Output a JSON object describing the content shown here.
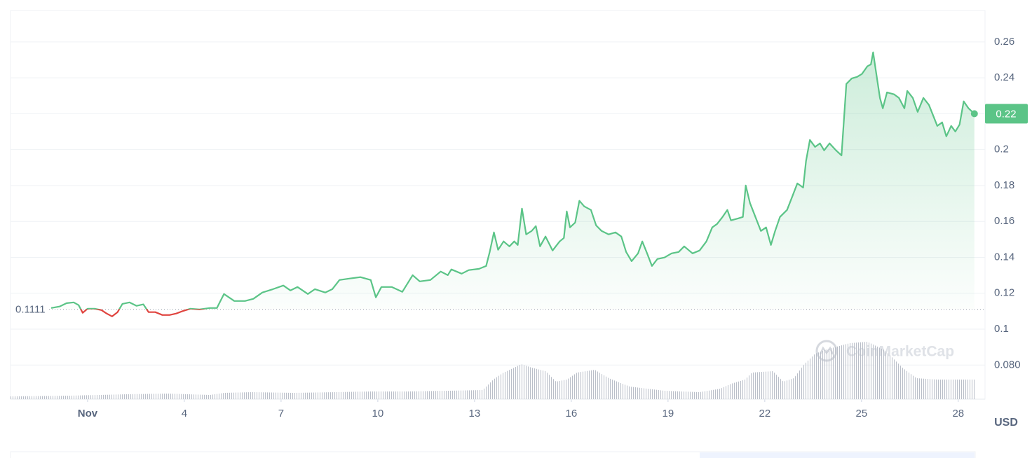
{
  "chart_data": {
    "type": "line",
    "x": [
      -0.13,
      0.13,
      0.35,
      0.57,
      0.72,
      0.85,
      1.0,
      1.22,
      1.43,
      1.59,
      1.76,
      1.93,
      2.08,
      2.3,
      2.52,
      2.73,
      2.89,
      3.1,
      3.32,
      3.54,
      3.75,
      3.97,
      4.19,
      4.47,
      4.79,
      5.01,
      5.23,
      5.55,
      5.88,
      6.14,
      6.42,
      6.75,
      7.07,
      7.29,
      7.51,
      7.83,
      8.05,
      8.37,
      8.59,
      8.81,
      9.13,
      9.46,
      9.78,
      9.94,
      10.11,
      10.43,
      10.76,
      11.08,
      11.3,
      11.63,
      11.95,
      12.17,
      12.28,
      12.6,
      12.82,
      13.14,
      13.36,
      13.47,
      13.6,
      13.73,
      13.9,
      14.08,
      14.23,
      14.34,
      14.47,
      14.6,
      14.77,
      14.9,
      15.03,
      15.2,
      15.42,
      15.64,
      15.77,
      15.86,
      15.96,
      16.12,
      16.25,
      16.4,
      16.61,
      16.77,
      16.94,
      17.16,
      17.37,
      17.55,
      17.7,
      17.87,
      18.07,
      18.2,
      18.35,
      18.5,
      18.67,
      18.89,
      19.11,
      19.33,
      19.5,
      19.76,
      19.98,
      20.19,
      20.37,
      20.52,
      20.69,
      20.84,
      20.95,
      21.17,
      21.32,
      21.41,
      21.54,
      21.71,
      21.88,
      22.04,
      22.19,
      22.32,
      22.47,
      22.69,
      22.86,
      23.01,
      23.19,
      23.28,
      23.4,
      23.56,
      23.71,
      23.84,
      24.01,
      24.21,
      24.38,
      24.53,
      24.7,
      24.86,
      25.01,
      25.18,
      25.29,
      25.36,
      25.44,
      25.57,
      25.66,
      25.79,
      26.01,
      26.16,
      26.33,
      26.42,
      26.59,
      26.74,
      26.92,
      27.09,
      27.22,
      27.35,
      27.5,
      27.63,
      27.78,
      27.91,
      28.04,
      28.17,
      28.32,
      28.5
    ],
    "values": [
      0.1118,
      0.1126,
      0.1145,
      0.1149,
      0.1134,
      0.1091,
      0.1114,
      0.1114,
      0.1106,
      0.1087,
      0.1071,
      0.1095,
      0.1141,
      0.1149,
      0.113,
      0.1138,
      0.1095,
      0.1095,
      0.1079,
      0.1079,
      0.1087,
      0.1102,
      0.1114,
      0.111,
      0.1118,
      0.1118,
      0.1196,
      0.1157,
      0.1157,
      0.1169,
      0.1204,
      0.1223,
      0.1243,
      0.1216,
      0.1235,
      0.1196,
      0.1223,
      0.1204,
      0.1223,
      0.1274,
      0.1282,
      0.129,
      0.1274,
      0.1177,
      0.1235,
      0.1235,
      0.1208,
      0.1301,
      0.1266,
      0.1274,
      0.1321,
      0.1301,
      0.1333,
      0.1309,
      0.1329,
      0.1336,
      0.1352,
      0.143,
      0.1539,
      0.1442,
      0.1489,
      0.1461,
      0.1489,
      0.1469,
      0.1672,
      0.1528,
      0.1547,
      0.1574,
      0.1461,
      0.1516,
      0.1438,
      0.1489,
      0.1508,
      0.1656,
      0.1567,
      0.1594,
      0.1715,
      0.1684,
      0.1664,
      0.1578,
      0.1547,
      0.1528,
      0.1539,
      0.1516,
      0.143,
      0.1379,
      0.1422,
      0.1489,
      0.1422,
      0.1352,
      0.1391,
      0.1399,
      0.1422,
      0.143,
      0.1461,
      0.1422,
      0.1438,
      0.1489,
      0.1567,
      0.1586,
      0.1625,
      0.1664,
      0.1606,
      0.1617,
      0.1625,
      0.18,
      0.1703,
      0.1625,
      0.1547,
      0.1567,
      0.1469,
      0.1547,
      0.1625,
      0.1664,
      0.1742,
      0.1812,
      0.1789,
      0.1937,
      0.2054,
      0.2015,
      0.2035,
      0.1996,
      0.2035,
      0.1996,
      0.1968,
      0.2366,
      0.2397,
      0.2405,
      0.2421,
      0.2464,
      0.2475,
      0.2542,
      0.2444,
      0.2288,
      0.223,
      0.2319,
      0.2308,
      0.2288,
      0.223,
      0.2327,
      0.2288,
      0.221,
      0.2288,
      0.2249,
      0.2191,
      0.2132,
      0.2152,
      0.2074,
      0.2132,
      0.2101,
      0.214,
      0.2269,
      0.223,
      0.22
    ],
    "color": "#5bc487",
    "down_color": "#e0443f",
    "reference": 0.1111,
    "last_price": 0.22,
    "currency": "USD",
    "watermark": "CoinMarketCap",
    "xlim": [
      -1.39,
      28.83
    ],
    "xticks": [
      {
        "value": 1,
        "label": "Nov"
      },
      4,
      7,
      10,
      13,
      16,
      19,
      22,
      25,
      28
    ],
    "ylim": [
      0.061,
      0.2775
    ],
    "yticks": [
      {
        "value": 0.08,
        "label": "0.080"
      },
      0.1,
      0.12,
      0.14,
      0.16,
      0.18,
      0.2,
      0.22,
      0.24,
      0.26
    ],
    "grid": true,
    "volume": {
      "x": [
        -1.39,
        0.46,
        2.19,
        3.49,
        4.8,
        5.23,
        6.1,
        7.4,
        8.7,
        9.78,
        10.87,
        12.17,
        13.25,
        13.58,
        13.9,
        14.23,
        14.45,
        14.77,
        15.2,
        15.53,
        15.86,
        16.18,
        16.73,
        17.16,
        17.81,
        18.89,
        19.98,
        20.63,
        20.95,
        21.39,
        21.6,
        22.25,
        22.58,
        22.9,
        23.23,
        23.56,
        23.99,
        24.64,
        25.18,
        25.72,
        26.27,
        26.7,
        27.35,
        28.54
      ],
      "values": [
        4,
        5,
        7,
        8,
        6,
        9,
        10,
        9,
        10,
        11,
        11,
        12,
        13,
        28,
        38,
        45,
        50,
        45,
        40,
        25,
        28,
        38,
        42,
        30,
        18,
        12,
        10,
        15,
        22,
        28,
        38,
        40,
        25,
        30,
        50,
        65,
        72,
        80,
        82,
        70,
        45,
        30,
        28,
        28
      ],
      "vlim": [
        0,
        100
      ],
      "color": "#b9bec8"
    }
  }
}
